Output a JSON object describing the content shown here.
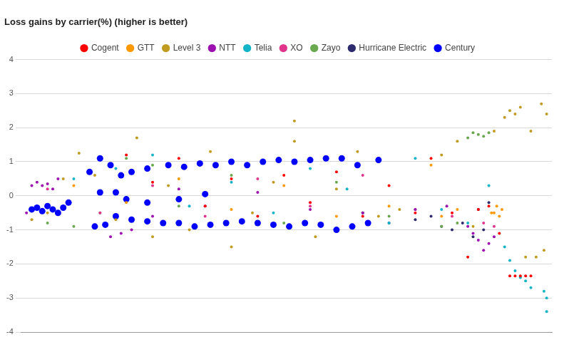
{
  "chart_data": {
    "type": "scatter",
    "title": "Loss gains by carrier(%) (higher is better)",
    "xlim": [
      0,
      101
    ],
    "ylim": [
      -4,
      4
    ],
    "yticks": [
      -4,
      -3,
      -2,
      -1,
      0,
      1,
      2,
      3,
      4
    ],
    "grid": true,
    "legend": "top",
    "tick_labels": "y",
    "marker": "circle",
    "series": [
      {
        "name": "Cogent",
        "color": "#ff0000",
        "x": [
          20,
          25,
          30,
          35,
          40,
          45,
          50,
          55,
          60,
          65,
          70,
          75,
          78,
          82,
          87,
          89,
          91,
          93,
          94,
          95,
          96,
          97,
          85
        ],
        "values": [
          1.2,
          0.4,
          1.1,
          -0.3,
          0.5,
          -0.6,
          0.6,
          -0.2,
          0.7,
          -0.6,
          0.3,
          -0.5,
          1.1,
          -0.5,
          -0.4,
          -0.3,
          -1.1,
          -2.35,
          -2.35,
          -2.35,
          -2.35,
          -2.35,
          -1.8
        ]
      },
      {
        "name": "GTT",
        "color": "#ff9900",
        "x": [
          10,
          20,
          30,
          40,
          50,
          60,
          70,
          80,
          83,
          90,
          90.5,
          91,
          91.5,
          89.5,
          78
        ],
        "values": [
          0.3,
          -0.2,
          0.5,
          -0.4,
          0.3,
          -0.6,
          -0.3,
          -0.6,
          -0.4,
          -0.5,
          -0.3,
          -0.6,
          -0.4,
          -0.5,
          0.9
        ]
      },
      {
        "name": "Level 3",
        "color": "#bf9b1f",
        "x": [
          2,
          5,
          8,
          11,
          14,
          18,
          22,
          25,
          28,
          32,
          36,
          40,
          44,
          48,
          52,
          56,
          60,
          64,
          68,
          72,
          80,
          83,
          86,
          90,
          92,
          93,
          94,
          95,
          96,
          97,
          99,
          100,
          99.5,
          98,
          52
        ],
        "values": [
          -0.7,
          -0.5,
          0.5,
          1.25,
          0.6,
          -0.7,
          1.7,
          -1.2,
          0.3,
          -1.0,
          1.3,
          -1.5,
          -0.5,
          0.4,
          1.6,
          -1.2,
          0.2,
          1.3,
          -0.6,
          -0.4,
          1.2,
          1.6,
          -0.9,
          1.9,
          2.3,
          2.5,
          2.4,
          2.6,
          -1.8,
          1.9,
          2.7,
          2.4,
          -1.6,
          -1.8,
          2.2
        ]
      },
      {
        "name": "NTT",
        "color": "#9c10b0",
        "x": [
          1,
          2,
          3,
          4,
          5,
          6,
          7,
          17,
          19,
          21,
          25,
          30,
          35,
          45,
          55,
          65,
          75,
          81,
          85,
          87,
          88,
          86,
          89,
          90
        ],
        "values": [
          -0.5,
          0.3,
          0.4,
          0.3,
          0.35,
          0.2,
          0.5,
          -1.2,
          -1.1,
          -1.0,
          -0.6,
          0.2,
          -0.3,
          0.1,
          -0.4,
          -0.5,
          -0.4,
          -0.3,
          -0.9,
          -1.3,
          -1.6,
          -1.1,
          -1.4,
          -1.2
        ]
      },
      {
        "name": "Telia",
        "color": "#14b4c8",
        "x": [
          10,
          18,
          25,
          32,
          40,
          48,
          55,
          62,
          70,
          75,
          80,
          85,
          89,
          92,
          94,
          95,
          96,
          97,
          100,
          100,
          99.5,
          93
        ],
        "values": [
          0.5,
          0.8,
          1.2,
          -0.3,
          0.4,
          -0.5,
          0.8,
          0.2,
          -0.8,
          1.1,
          -0.4,
          -0.8,
          0.3,
          -1.5,
          -2.2,
          -2.4,
          -2.5,
          -2.7,
          -3.0,
          -3.4,
          -2.8,
          -1.9
        ]
      },
      {
        "name": "XO",
        "color": "#e0358a",
        "x": [
          5,
          15,
          25,
          35,
          45,
          55,
          65,
          75,
          82,
          88,
          90
        ],
        "values": [
          0.2,
          -0.5,
          0.3,
          -0.6,
          0.5,
          -0.3,
          0.6,
          -0.4,
          -0.6,
          -0.8,
          -0.9
        ]
      },
      {
        "name": "Zayo",
        "color": "#6aa84f",
        "x": [
          5,
          10,
          15,
          20,
          25,
          30,
          40,
          50,
          60,
          70,
          80,
          85,
          86,
          87,
          88,
          89,
          83
        ],
        "values": [
          -0.8,
          -0.9,
          -0.5,
          1.1,
          0.9,
          -0.3,
          0.6,
          -0.8,
          0.4,
          -0.6,
          -0.9,
          1.7,
          1.85,
          1.8,
          1.75,
          1.85,
          -0.8
        ]
      },
      {
        "name": "Hurricane Electric",
        "color": "#2d2a6e",
        "x": [
          65,
          70,
          75,
          78,
          80,
          82,
          84,
          86,
          87,
          88,
          89
        ],
        "values": [
          -0.5,
          -0.8,
          -0.7,
          -0.6,
          -0.9,
          -1.0,
          -0.8,
          -1.2,
          -0.4,
          -1.0,
          -0.2
        ]
      },
      {
        "name": "Century",
        "color": "#0000ff",
        "x": [
          2,
          3,
          4,
          5,
          6,
          7,
          8,
          9,
          13,
          15,
          17,
          19,
          21,
          24,
          28,
          31,
          34,
          37,
          40,
          43,
          46,
          49,
          52,
          55,
          58,
          61,
          64,
          68,
          14,
          16,
          18,
          21,
          24,
          27,
          30,
          33,
          36,
          39,
          42,
          45,
          48,
          51,
          54,
          57,
          60,
          63,
          66,
          15,
          18,
          20,
          24,
          30,
          35
        ],
        "values": [
          -0.4,
          -0.35,
          -0.45,
          -0.3,
          -0.4,
          -0.5,
          -0.35,
          -0.2,
          0.7,
          1.1,
          0.9,
          0.6,
          0.7,
          0.8,
          0.9,
          0.85,
          0.95,
          0.9,
          1.0,
          0.9,
          1.0,
          1.05,
          1.0,
          1.05,
          1.1,
          1.1,
          0.9,
          1.05,
          -0.9,
          -0.85,
          -0.6,
          -0.7,
          -0.75,
          -0.8,
          -0.8,
          -0.9,
          -0.85,
          -0.8,
          -0.75,
          -0.8,
          -0.85,
          -0.9,
          -0.8,
          -0.85,
          -1.0,
          -0.9,
          -0.8,
          0.1,
          0.1,
          -0.1,
          -0.2,
          -0.1,
          0.05
        ]
      }
    ]
  }
}
